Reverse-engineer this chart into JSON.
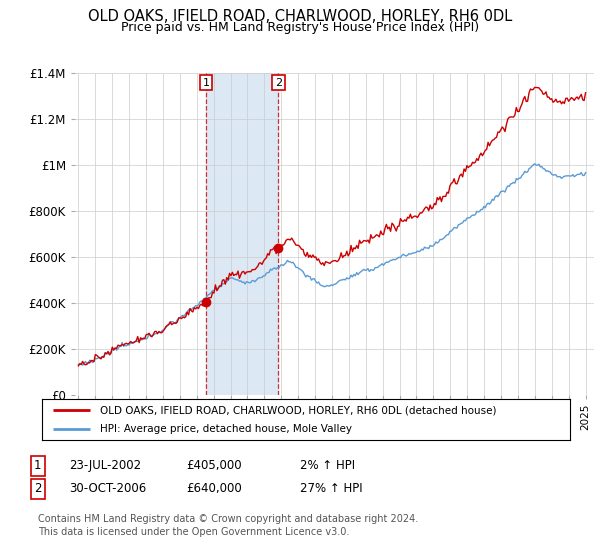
{
  "title": "OLD OAKS, IFIELD ROAD, CHARLWOOD, HORLEY, RH6 0DL",
  "subtitle": "Price paid vs. HM Land Registry's House Price Index (HPI)",
  "legend_line1": "OLD OAKS, IFIELD ROAD, CHARLWOOD, HORLEY, RH6 0DL (detached house)",
  "legend_line2": "HPI: Average price, detached house, Mole Valley",
  "sale1_date": "23-JUL-2002",
  "sale1_price": "£405,000",
  "sale1_hpi": "2% ↑ HPI",
  "sale2_date": "30-OCT-2006",
  "sale2_price": "£640,000",
  "sale2_hpi": "27% ↑ HPI",
  "footer": "Contains HM Land Registry data © Crown copyright and database right 2024.\nThis data is licensed under the Open Government Licence v3.0.",
  "hpi_color": "#5b9bd5",
  "price_color": "#cc0000",
  "shade_color": "#dce9f5",
  "grid_color": "#cccccc",
  "ylim": [
    0,
    1400000
  ],
  "sale1_x": 2002.55,
  "sale1_y": 405000,
  "sale2_x": 2006.83,
  "sale2_y": 640000,
  "xmin": 1994.8,
  "xmax": 2025.5
}
